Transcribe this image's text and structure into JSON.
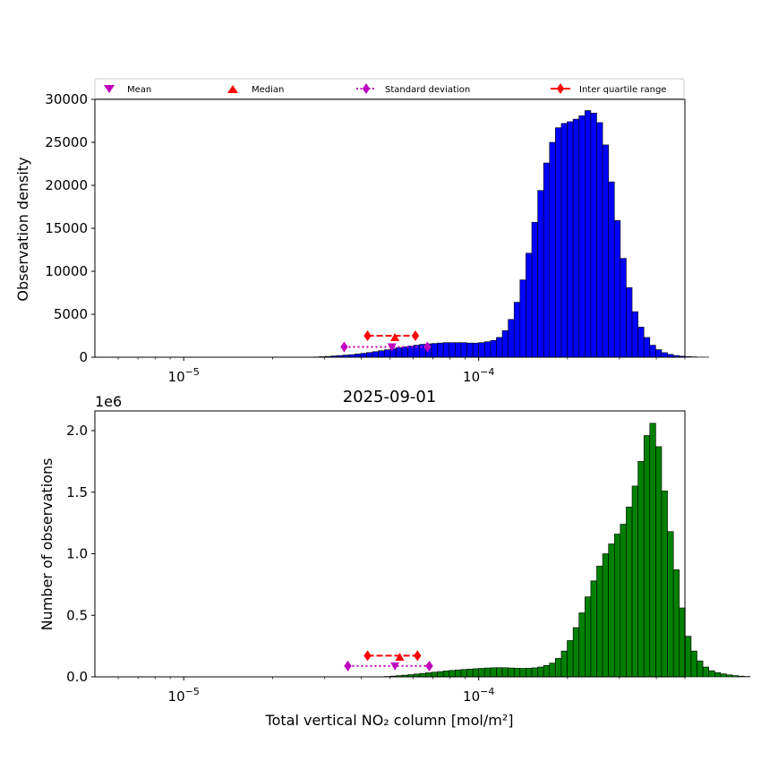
{
  "chart_data": [
    {
      "type": "bar",
      "subtype": "histogram",
      "xscale": "log",
      "title": "",
      "xlabel": "",
      "ylabel": "Observation density",
      "xlim": [
        5e-06,
        0.0005
      ],
      "ylim": [
        0,
        30000
      ],
      "yticks": [
        0,
        5000,
        10000,
        15000,
        20000,
        25000,
        30000
      ],
      "ytick_labels": [
        "0",
        "5000",
        "10000",
        "15000",
        "20000",
        "25000",
        "30000"
      ],
      "xtick_labels": [
        {
          "base": "10",
          "exp": "−5"
        },
        {
          "base": "10",
          "exp": "−4"
        }
      ],
      "xticks": [
        1e-05,
        0.0001
      ],
      "bar_color": "#0000ff",
      "bin_log_start": -5.2,
      "bin_log_width": 0.02,
      "values": [
        0,
        0,
        0,
        0,
        0,
        0,
        0,
        0,
        0,
        0,
        0,
        0,
        0,
        0,
        0,
        0,
        0,
        0,
        0,
        0,
        0,
        0,
        0,
        0,
        0,
        0,
        0,
        0,
        0,
        0,
        0,
        0,
        30,
        60,
        100,
        150,
        200,
        250,
        300,
        380,
        460,
        550,
        650,
        760,
        870,
        980,
        1100,
        1200,
        1300,
        1400,
        1500,
        1550,
        1600,
        1650,
        1700,
        1700,
        1700,
        1700,
        1650,
        1650,
        1700,
        1800,
        1950,
        2300,
        3100,
        4400,
        6400,
        9000,
        12100,
        15700,
        19400,
        22600,
        25000,
        26700,
        27200,
        27400,
        27700,
        28100,
        28700,
        28400,
        27300,
        24700,
        20400,
        15900,
        11500,
        8100,
        5300,
        3500,
        2300,
        1400,
        880,
        530,
        330,
        200,
        120,
        70,
        40,
        20,
        10,
        0
      ],
      "stats": {
        "mean": {
          "x": 5.08e-05,
          "y": 1200
        },
        "median": {
          "x": 5.2e-05,
          "y": 2300
        },
        "std": {
          "x1": 3.5e-05,
          "x2": 6.7e-05,
          "y": 1200
        },
        "iqr": {
          "x1": 4.2e-05,
          "x2": 6.1e-05,
          "y": 2500
        }
      }
    },
    {
      "type": "bar",
      "subtype": "histogram",
      "xscale": "log",
      "title": "2025-09-01",
      "xlabel": "Total vertical NO₂ column [mol/m²]",
      "ylabel": "Number of observations",
      "offset_label": "1e6",
      "xlim": [
        5e-06,
        0.0005
      ],
      "ylim": [
        0,
        2160000
      ],
      "yticks": [
        0,
        500000,
        1000000,
        1500000,
        2000000
      ],
      "ytick_labels": [
        "0.0",
        "0.5",
        "1.0",
        "1.5",
        "2.0"
      ],
      "xtick_labels": [
        {
          "base": "10",
          "exp": "−5"
        },
        {
          "base": "10",
          "exp": "−4"
        }
      ],
      "xticks": [
        1e-05,
        0.0001
      ],
      "bar_color": "#008000",
      "bin_log_start": -5.2,
      "bin_log_width": 0.02,
      "values": [
        0,
        0,
        0,
        0,
        0,
        0,
        0,
        0,
        0,
        0,
        0,
        0,
        0,
        0,
        0,
        0,
        0,
        0,
        0,
        0,
        0,
        0,
        0,
        0,
        0,
        0,
        0,
        0,
        0,
        0,
        0,
        0,
        0,
        0,
        0,
        0,
        0,
        0,
        0,
        0,
        0,
        0,
        0,
        0,
        3000,
        6000,
        10000,
        14000,
        18000,
        23000,
        28000,
        33000,
        38000,
        43000,
        48000,
        52000,
        56000,
        60000,
        63000,
        66000,
        69000,
        72000,
        74000,
        75000,
        74000,
        72000,
        70000,
        69000,
        70000,
        73000,
        80000,
        92000,
        112000,
        150000,
        210000,
        295000,
        400000,
        520000,
        650000,
        780000,
        900000,
        1000000,
        1080000,
        1160000,
        1240000,
        1380000,
        1550000,
        1750000,
        1960000,
        2060000,
        1870000,
        1510000,
        1180000,
        870000,
        560000,
        330000,
        210000,
        130000,
        80000,
        50000,
        34000,
        24000,
        16000,
        10000,
        6000,
        3000,
        0
      ],
      "stats": {
        "mean": {
          "x": 5.2e-05,
          "y": 88000
        },
        "median": {
          "x": 5.4e-05,
          "y": 160000
        },
        "std": {
          "x1": 3.6e-05,
          "x2": 6.8e-05,
          "y": 88000
        },
        "iqr": {
          "x1": 4.2e-05,
          "x2": 6.2e-05,
          "y": 172000
        }
      }
    }
  ],
  "legend": {
    "placement": "top, above upper chart",
    "entries": [
      {
        "label": "Mean",
        "marker": "triangle-down",
        "color": "#bf00bf"
      },
      {
        "label": "Median",
        "marker": "triangle-up",
        "color": "#ff0000"
      },
      {
        "label": "Standard deviation",
        "marker": "diamond-dotted-line",
        "color": "#bf00bf"
      },
      {
        "label": "Inter quartile range",
        "marker": "diamond-dashed-line",
        "color": "#ff0000"
      }
    ]
  }
}
